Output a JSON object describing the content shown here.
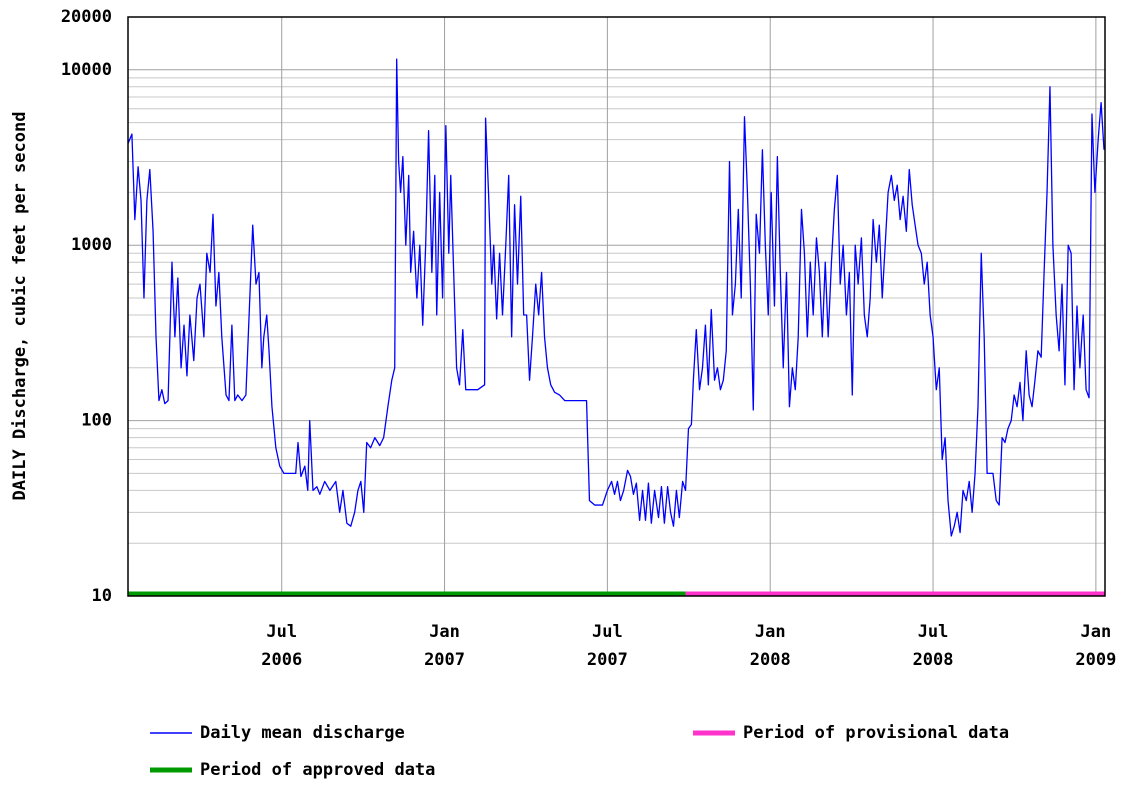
{
  "chart_data": {
    "type": "line",
    "y_label": "DAILY Discharge, cubic feet per second",
    "y_scale": "log",
    "grid": true,
    "xlim": [
      2006.028,
      2009.028
    ],
    "ylim": [
      10,
      20000
    ],
    "yticks": [
      10,
      100,
      1000,
      10000,
      20000
    ],
    "minor_yticks": [
      20,
      30,
      40,
      50,
      60,
      70,
      80,
      90,
      200,
      300,
      400,
      500,
      600,
      700,
      800,
      900,
      2000,
      3000,
      4000,
      5000,
      6000,
      7000,
      8000,
      9000
    ],
    "xticks": [
      {
        "value": 2006.5,
        "label": [
          "Jul",
          "2006"
        ]
      },
      {
        "value": 2007.0,
        "label": [
          "Jan",
          "2007"
        ]
      },
      {
        "value": 2007.5,
        "label": [
          "Jul",
          "2007"
        ]
      },
      {
        "value": 2008.0,
        "label": [
          "Jan",
          "2008"
        ]
      },
      {
        "value": 2008.5,
        "label": [
          "Jul",
          "2008"
        ]
      },
      {
        "value": 2009.0,
        "label": [
          "Jan",
          "2009"
        ]
      }
    ],
    "x": [
      2006.028,
      2006.04,
      2006.049,
      2006.059,
      2006.068,
      2006.077,
      2006.086,
      2006.095,
      2006.105,
      2006.114,
      2006.123,
      2006.132,
      2006.141,
      2006.151,
      2006.163,
      2006.172,
      2006.181,
      2006.191,
      2006.2,
      2006.209,
      2006.218,
      2006.23,
      2006.24,
      2006.249,
      2006.261,
      2006.27,
      2006.28,
      2006.289,
      2006.298,
      2006.307,
      2006.316,
      2006.329,
      2006.338,
      2006.347,
      2006.356,
      2006.365,
      2006.378,
      2006.39,
      2006.402,
      2006.411,
      2006.421,
      2006.43,
      2006.439,
      2006.445,
      2006.454,
      2006.461,
      2006.47,
      2006.482,
      2006.494,
      2006.507,
      2006.525,
      2006.543,
      2006.55,
      2006.559,
      2006.571,
      2006.58,
      2006.586,
      2006.596,
      2006.608,
      2006.617,
      2006.632,
      2006.648,
      2006.666,
      2006.678,
      2006.688,
      2006.7,
      2006.712,
      2006.724,
      2006.734,
      2006.743,
      2006.752,
      2006.761,
      2006.773,
      2006.786,
      2006.801,
      2006.813,
      2006.826,
      2006.838,
      2006.847,
      2006.853,
      2006.859,
      2006.865,
      2006.872,
      2006.881,
      2006.89,
      2006.896,
      2006.905,
      2006.915,
      2006.924,
      2006.933,
      2006.942,
      2006.951,
      2006.961,
      2006.97,
      2006.976,
      2006.985,
      2006.994,
      2007.004,
      2007.013,
      2007.019,
      2007.028,
      2007.037,
      2007.046,
      2007.056,
      2007.065,
      2007.077,
      2007.102,
      2007.123,
      2007.126,
      2007.135,
      2007.145,
      2007.151,
      2007.16,
      2007.169,
      2007.178,
      2007.188,
      2007.197,
      2007.206,
      2007.215,
      2007.224,
      2007.234,
      2007.243,
      2007.252,
      2007.261,
      2007.27,
      2007.28,
      2007.289,
      2007.298,
      2007.307,
      2007.316,
      2007.326,
      2007.338,
      2007.353,
      2007.369,
      2007.384,
      2007.415,
      2007.436,
      2007.445,
      2007.461,
      2007.485,
      2007.5,
      2007.513,
      2007.522,
      2007.531,
      2007.54,
      2007.55,
      2007.562,
      2007.571,
      2007.58,
      2007.589,
      2007.599,
      2007.608,
      2007.617,
      2007.626,
      2007.635,
      2007.645,
      2007.657,
      2007.666,
      2007.675,
      2007.685,
      2007.694,
      2007.703,
      2007.712,
      2007.721,
      2007.731,
      2007.74,
      2007.749,
      2007.758,
      2007.764,
      2007.773,
      2007.783,
      2007.792,
      2007.801,
      2007.81,
      2007.819,
      2007.829,
      2007.838,
      2007.847,
      2007.856,
      2007.865,
      2007.875,
      2007.884,
      2007.893,
      2007.902,
      2007.911,
      2007.921,
      2007.93,
      2007.939,
      2007.948,
      2007.957,
      2007.967,
      2007.976,
      2007.985,
      2007.994,
      2008.003,
      2008.013,
      2008.022,
      2008.031,
      2008.04,
      2008.05,
      2008.059,
      2008.068,
      2008.077,
      2008.086,
      2008.096,
      2008.105,
      2008.114,
      2008.123,
      2008.132,
      2008.142,
      2008.151,
      2008.16,
      2008.169,
      2008.178,
      2008.188,
      2008.197,
      2008.206,
      2008.215,
      2008.224,
      2008.234,
      2008.243,
      2008.252,
      2008.261,
      2008.27,
      2008.28,
      2008.289,
      2008.298,
      2008.307,
      2008.316,
      2008.326,
      2008.335,
      2008.344,
      2008.353,
      2008.362,
      2008.372,
      2008.381,
      2008.39,
      2008.399,
      2008.408,
      2008.418,
      2008.427,
      2008.436,
      2008.445,
      2008.454,
      2008.464,
      2008.473,
      2008.482,
      2008.491,
      2008.5,
      2008.51,
      2008.519,
      2008.528,
      2008.537,
      2008.546,
      2008.556,
      2008.565,
      2008.574,
      2008.583,
      2008.592,
      2008.602,
      2008.611,
      2008.62,
      2008.629,
      2008.638,
      2008.648,
      2008.657,
      2008.666,
      2008.675,
      2008.684,
      2008.694,
      2008.703,
      2008.712,
      2008.721,
      2008.73,
      2008.74,
      2008.749,
      2008.758,
      2008.767,
      2008.776,
      2008.786,
      2008.795,
      2008.804,
      2008.813,
      2008.822,
      2008.832,
      2008.841,
      2008.85,
      2008.859,
      2008.868,
      2008.878,
      2008.887,
      2008.896,
      2008.905,
      2008.915,
      2008.924,
      2008.933,
      2008.942,
      2008.951,
      2008.961,
      2008.97,
      2008.979,
      2008.988,
      2008.997,
      2009.007,
      2009.016,
      2009.025
    ],
    "series": [
      {
        "name": "Daily mean discharge",
        "color": "#0000ff",
        "values": [
          3800,
          4300,
          1400,
          2800,
          1800,
          500,
          1800,
          2700,
          1200,
          300,
          130,
          150,
          125,
          130,
          800,
          300,
          650,
          200,
          350,
          180,
          400,
          220,
          500,
          600,
          300,
          900,
          700,
          1500,
          450,
          700,
          300,
          140,
          130,
          350,
          130,
          140,
          130,
          140,
          500,
          1300,
          600,
          700,
          200,
          300,
          400,
          250,
          120,
          70,
          55,
          50,
          50,
          50,
          75,
          48,
          55,
          40,
          100,
          40,
          42,
          38,
          45,
          40,
          45,
          30,
          40,
          26,
          25,
          30,
          40,
          45,
          30,
          75,
          70,
          80,
          72,
          80,
          120,
          170,
          200,
          11500,
          3000,
          2000,
          3200,
          1000,
          2500,
          700,
          1200,
          500,
          1000,
          350,
          1000,
          4500,
          700,
          2500,
          400,
          2000,
          500,
          4800,
          900,
          2500,
          700,
          200,
          160,
          330,
          150,
          150,
          150,
          160,
          5300,
          2000,
          600,
          1000,
          380,
          900,
          400,
          1000,
          2500,
          300,
          1700,
          600,
          1900,
          400,
          400,
          170,
          300,
          600,
          400,
          700,
          300,
          200,
          160,
          145,
          140,
          130,
          130,
          130,
          130,
          35,
          33,
          33,
          40,
          45,
          38,
          45,
          35,
          40,
          52,
          48,
          38,
          44,
          27,
          40,
          27,
          44,
          26,
          40,
          28,
          42,
          26,
          42,
          30,
          25,
          40,
          28,
          45,
          40,
          90,
          95,
          170,
          330,
          150,
          200,
          350,
          160,
          430,
          170,
          200,
          150,
          170,
          250,
          3000,
          400,
          600,
          1600,
          500,
          5400,
          2000,
          600,
          115,
          1500,
          900,
          3500,
          1000,
          400,
          2000,
          450,
          3200,
          700,
          200,
          700,
          120,
          200,
          150,
          300,
          1600,
          900,
          300,
          800,
          400,
          1100,
          700,
          300,
          800,
          300,
          800,
          1600,
          2500,
          600,
          1000,
          400,
          700,
          140,
          1000,
          600,
          1100,
          400,
          300,
          500,
          1400,
          800,
          1300,
          500,
          1000,
          2000,
          2500,
          1800,
          2200,
          1400,
          1900,
          1200,
          2700,
          1700,
          1300,
          1000,
          900,
          600,
          800,
          400,
          300,
          150,
          200,
          60,
          80,
          35,
          22,
          25,
          30,
          23,
          40,
          35,
          45,
          30,
          50,
          120,
          900,
          300,
          50,
          50,
          50,
          35,
          33,
          80,
          75,
          90,
          100,
          140,
          120,
          165,
          100,
          250,
          140,
          120,
          170,
          250,
          230,
          700,
          2000,
          8000,
          1000,
          400,
          250,
          600,
          160,
          1000,
          900,
          150,
          450,
          200,
          400,
          150,
          135,
          5600,
          2000,
          4000,
          6500,
          3500
        ]
      }
    ],
    "periods": [
      {
        "name": "Period of approved data",
        "color": "#009900",
        "start": 2006.028,
        "end": 2007.74
      },
      {
        "name": "Period of provisional data",
        "color": "#ff33cc",
        "start": 2007.74,
        "end": 2009.028
      }
    ]
  }
}
